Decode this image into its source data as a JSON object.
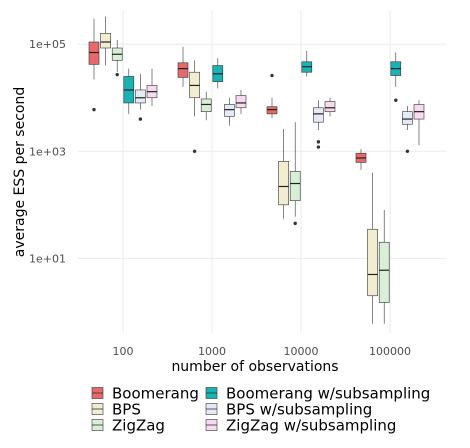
{
  "chart_data": {
    "type": "boxplot",
    "xlabel": "number of observations",
    "ylabel": "average ESS per second",
    "y_scale": "log10",
    "ylim": [
      0.5,
      400000
    ],
    "y_ticks": [
      {
        "value": 10,
        "label": "1e+01"
      },
      {
        "value": 1000,
        "label": "1e+03"
      },
      {
        "value": 100000,
        "label": "1e+05"
      }
    ],
    "categories": [
      "100",
      "1000",
      "10000",
      "100000"
    ],
    "grid": true,
    "legend_position": "bottom",
    "series": [
      {
        "name": "Boomerang",
        "color": "#e8696b",
        "boxes": [
          {
            "whisker_low": 22000,
            "q1": 42000,
            "median": 70000,
            "q3": 110000,
            "whisker_high": 300000,
            "outliers": [
              6000
            ]
          },
          {
            "whisker_low": 16000,
            "q1": 24000,
            "median": 35000,
            "q3": 45000,
            "whisker_high": 90000,
            "outliers": []
          },
          {
            "whisker_low": 4200,
            "q1": 5000,
            "median": 6000,
            "q3": 6800,
            "whisker_high": 10000,
            "outliers": [
              26000
            ]
          },
          {
            "whisker_low": 450,
            "q1": 620,
            "median": 750,
            "q3": 920,
            "whisker_high": 1100,
            "outliers": []
          }
        ]
      },
      {
        "name": "BPS",
        "color": "#f2ecd0",
        "boxes": [
          {
            "whisker_low": 40000,
            "q1": 85000,
            "median": 110000,
            "q3": 160000,
            "whisker_high": 330000,
            "outliers": []
          },
          {
            "whisker_low": 4500,
            "q1": 10000,
            "median": 17000,
            "q3": 30000,
            "whisker_high": 50000,
            "outliers": [
              1000
            ]
          },
          {
            "whisker_low": 55,
            "q1": 100,
            "median": 220,
            "q3": 650,
            "whisker_high": 2600,
            "outliers": []
          },
          {
            "whisker_low": 0.6,
            "q1": 2,
            "median": 5,
            "q3": 35,
            "whisker_high": 400,
            "outliers": []
          }
        ]
      },
      {
        "name": "ZigZag",
        "color": "#d8efd5",
        "boxes": [
          {
            "whisker_low": 30000,
            "q1": 50000,
            "median": 65000,
            "q3": 85000,
            "whisker_high": 120000,
            "outliers": [
              27000
            ]
          },
          {
            "whisker_low": 3800,
            "q1": 5500,
            "median": 7500,
            "q3": 9500,
            "whisker_high": 13000,
            "outliers": []
          },
          {
            "whisker_low": 60,
            "q1": 120,
            "median": 250,
            "q3": 420,
            "whisker_high": 3500,
            "outliers": [
              45
            ]
          },
          {
            "whisker_low": 0.6,
            "q1": 1.5,
            "median": 6,
            "q3": 20,
            "whisker_high": 80,
            "outliers": []
          }
        ]
      },
      {
        "name": "Boomerang w/subsampling",
        "color": "#17b3b5",
        "boxes": [
          {
            "whisker_low": 5000,
            "q1": 8000,
            "median": 14000,
            "q3": 25000,
            "whisker_high": 35000,
            "outliers": []
          },
          {
            "whisker_low": 15000,
            "q1": 20000,
            "median": 28000,
            "q3": 40000,
            "whisker_high": 55000,
            "outliers": []
          },
          {
            "whisker_low": 25000,
            "q1": 30000,
            "median": 38000,
            "q3": 47000,
            "whisker_high": 75000,
            "outliers": []
          },
          {
            "whisker_low": 16000,
            "q1": 26000,
            "median": 35000,
            "q3": 47000,
            "whisker_high": 70000,
            "outliers": [
              9000
            ]
          }
        ]
      },
      {
        "name": "BPS w/subsampling",
        "color": "#e6eaf7",
        "boxes": [
          {
            "whisker_low": 6000,
            "q1": 8000,
            "median": 10000,
            "q3": 14000,
            "whisker_high": 28000,
            "outliers": [
              4000
            ]
          },
          {
            "whisker_low": 3000,
            "q1": 4500,
            "median": 6000,
            "q3": 7500,
            "whisker_high": 10000,
            "outliers": []
          },
          {
            "whisker_low": 2500,
            "q1": 3500,
            "median": 5000,
            "q3": 6500,
            "whisker_high": 9000,
            "outliers": [
              1500,
              1200
            ]
          },
          {
            "whisker_low": 2500,
            "q1": 3200,
            "median": 4000,
            "q3": 5500,
            "whisker_high": 7000,
            "outliers": [
              1000
            ]
          }
        ]
      },
      {
        "name": "ZigZag w/subsampling",
        "color": "#f7d9f0",
        "boxes": [
          {
            "whisker_low": 7000,
            "q1": 10000,
            "median": 13000,
            "q3": 17000,
            "whisker_high": 35000,
            "outliers": []
          },
          {
            "whisker_low": 5000,
            "q1": 6500,
            "median": 8000,
            "q3": 11000,
            "whisker_high": 14000,
            "outliers": []
          },
          {
            "whisker_low": 4500,
            "q1": 5500,
            "median": 6500,
            "q3": 8500,
            "whisker_high": 10000,
            "outliers": []
          },
          {
            "whisker_low": 1300,
            "q1": 4000,
            "median": 5500,
            "q3": 7500,
            "whisker_high": 9000,
            "outliers": []
          }
        ]
      }
    ]
  }
}
